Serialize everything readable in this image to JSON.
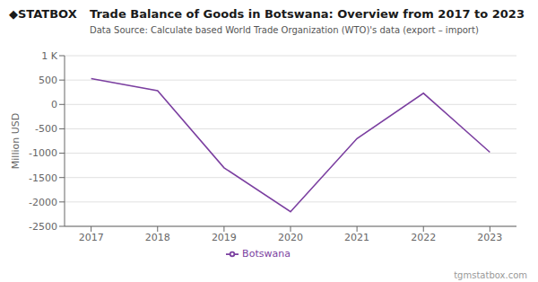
{
  "chart_data": {
    "type": "line",
    "title": "Trade Balance of Goods in Botswana: Overview from 2017 to 2023",
    "subtitle": "Data Source: Calculate based World Trade Organization (WTO)'s data (export – import)",
    "y_label": "Million USD",
    "x": [
      2017,
      2018,
      2019,
      2020,
      2021,
      2022,
      2023
    ],
    "series": [
      {
        "name": "Botswana",
        "color": "#7B3FA0",
        "values": [
          530,
          280,
          -1300,
          -2200,
          -700,
          230,
          -980
        ]
      }
    ],
    "xlim": [
      2016.6,
      2023.4
    ],
    "xticks": [
      2017,
      2018,
      2019,
      2020,
      2021,
      2022,
      2023
    ],
    "ylim": [
      -2500,
      1000
    ],
    "yticks": [
      -2500,
      -2000,
      -1500,
      -1000,
      -500,
      0,
      500,
      {
        "value": 1000,
        "label": "1 K"
      }
    ],
    "grid": true,
    "legend": "bottom",
    "annotations": [
      "◆STAT",
      "BOX",
      "tgmstatbox.com"
    ]
  }
}
